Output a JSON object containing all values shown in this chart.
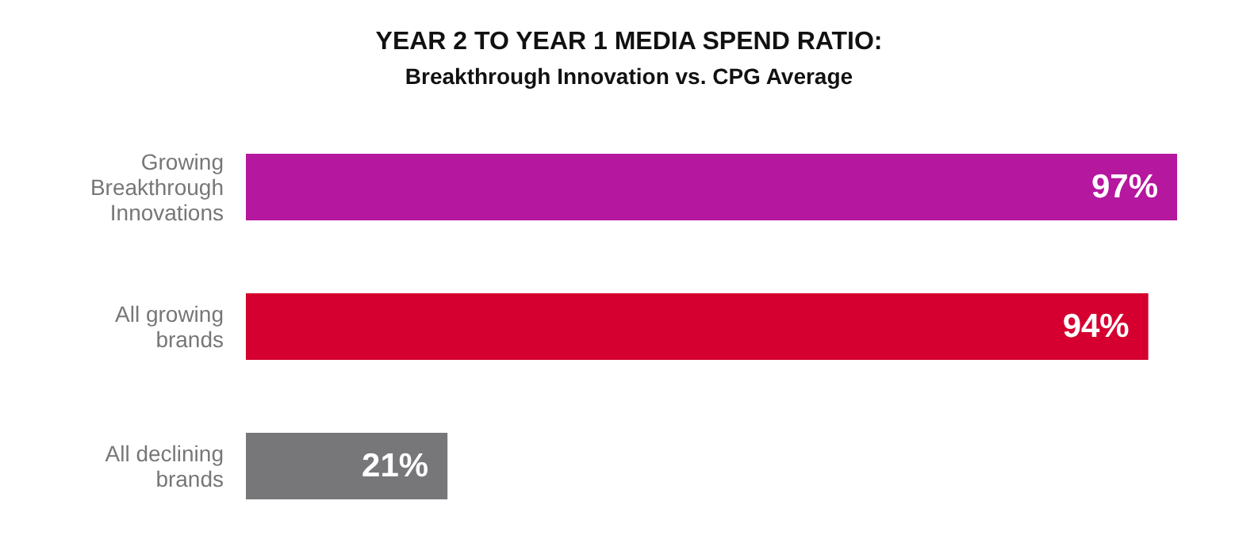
{
  "chart_data": {
    "type": "bar",
    "orientation": "horizontal",
    "title": "YEAR 2 TO YEAR 1 MEDIA SPEND RATIO:",
    "subtitle": "Breakthrough Innovation vs. CPG Average",
    "categories": [
      "Growing Breakthrough Innovations",
      "All growing brands",
      "All declining brands"
    ],
    "values": [
      97,
      94,
      21
    ],
    "colors": [
      "#b5179e",
      "#d5002f",
      "#77777a"
    ],
    "value_labels": [
      "97%",
      "94%",
      "21%"
    ],
    "tick_labels": "y"
  }
}
